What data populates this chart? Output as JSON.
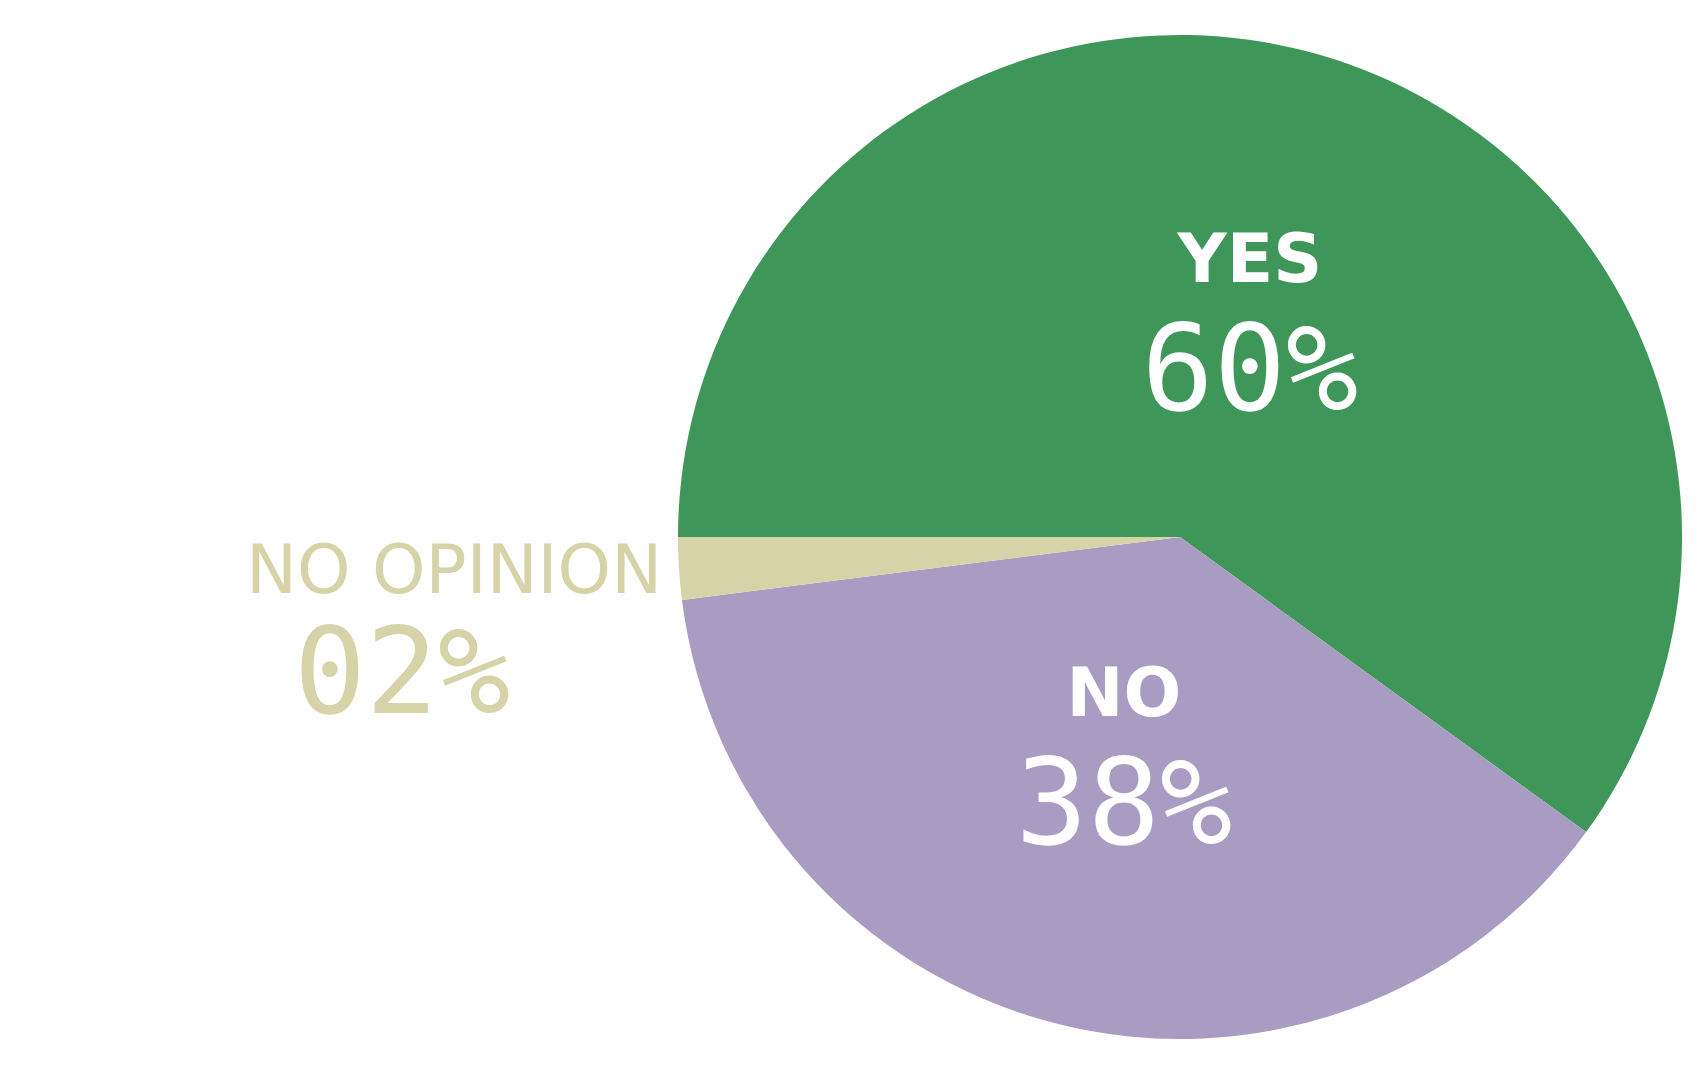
{
  "chart_data": {
    "type": "pie",
    "categories": [
      "YES",
      "NO",
      "NO OPINION"
    ],
    "values": [
      60,
      38,
      2
    ],
    "colors": [
      "#3e9659",
      "#a99cc3",
      "#d6d3a8"
    ],
    "value_labels": [
      "60%",
      "38%",
      "02%"
    ],
    "legend": false
  }
}
